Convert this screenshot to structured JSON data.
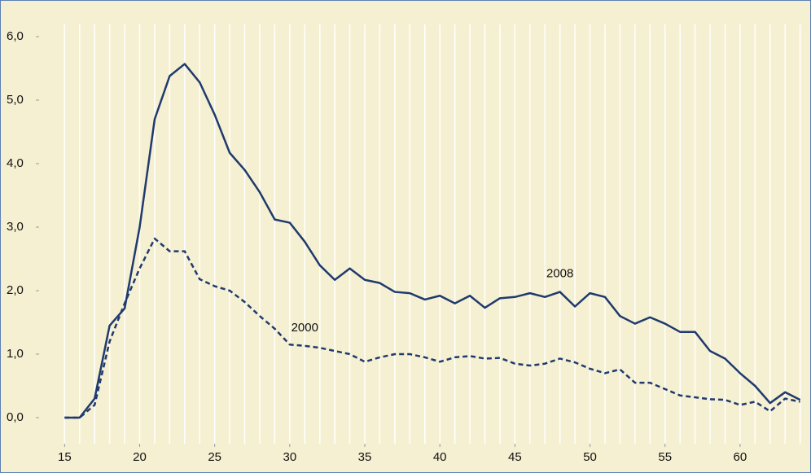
{
  "chart_data": {
    "type": "line",
    "x": [
      15,
      16,
      17,
      18,
      19,
      20,
      21,
      22,
      23,
      24,
      25,
      26,
      27,
      28,
      29,
      30,
      31,
      32,
      33,
      34,
      35,
      36,
      37,
      38,
      39,
      40,
      41,
      42,
      43,
      44,
      45,
      46,
      47,
      48,
      49,
      50,
      51,
      52,
      53,
      54,
      55,
      56,
      57,
      58,
      59,
      60,
      61,
      62,
      63,
      64
    ],
    "series": [
      {
        "name": "2008",
        "color": "#1f3a6e",
        "style": "solid",
        "values": [
          0,
          0,
          0.3,
          1.45,
          1.72,
          3.0,
          4.7,
          5.38,
          5.57,
          5.28,
          4.77,
          4.17,
          3.9,
          3.55,
          3.12,
          3.07,
          2.77,
          2.4,
          2.17,
          2.35,
          2.17,
          2.12,
          1.98,
          1.96,
          1.86,
          1.92,
          1.8,
          1.92,
          1.73,
          1.88,
          1.9,
          1.96,
          1.9,
          1.98,
          1.75,
          1.96,
          1.9,
          1.6,
          1.48,
          1.58,
          1.48,
          1.35,
          1.35,
          1.05,
          0.93,
          0.7,
          0.5,
          0.23,
          0.4,
          0.28
        ]
      },
      {
        "name": "2000",
        "color": "#1f3a6e",
        "style": "dashed",
        "values": [
          0,
          0,
          0.2,
          1.2,
          1.8,
          2.35,
          2.82,
          2.62,
          2.62,
          2.18,
          2.07,
          2.0,
          1.82,
          1.6,
          1.4,
          1.15,
          1.13,
          1.1,
          1.05,
          1.0,
          0.88,
          0.95,
          1.0,
          1.0,
          0.95,
          0.88,
          0.95,
          0.97,
          0.93,
          0.94,
          0.85,
          0.82,
          0.85,
          0.93,
          0.87,
          0.77,
          0.7,
          0.76,
          0.55,
          0.55,
          0.45,
          0.35,
          0.32,
          0.29,
          0.28,
          0.2,
          0.25,
          0.1,
          0.3,
          0.25
        ]
      }
    ],
    "xlim": [
      13.3,
      64.4
    ],
    "xticks": [
      15,
      20,
      25,
      30,
      35,
      40,
      45,
      50,
      55,
      60
    ],
    "ylim": [
      0,
      6
    ],
    "yticks": [
      {
        "value": 0,
        "label": "0,0"
      },
      {
        "value": 1,
        "label": "1,0"
      },
      {
        "value": 2,
        "label": "2,0"
      },
      {
        "value": 3,
        "label": "3,0"
      },
      {
        "value": 4,
        "label": "4,0"
      },
      {
        "value": 5,
        "label": "5,0"
      },
      {
        "value": 6,
        "label": "6,0"
      }
    ],
    "grid": true,
    "background": "#f6f0d2"
  }
}
